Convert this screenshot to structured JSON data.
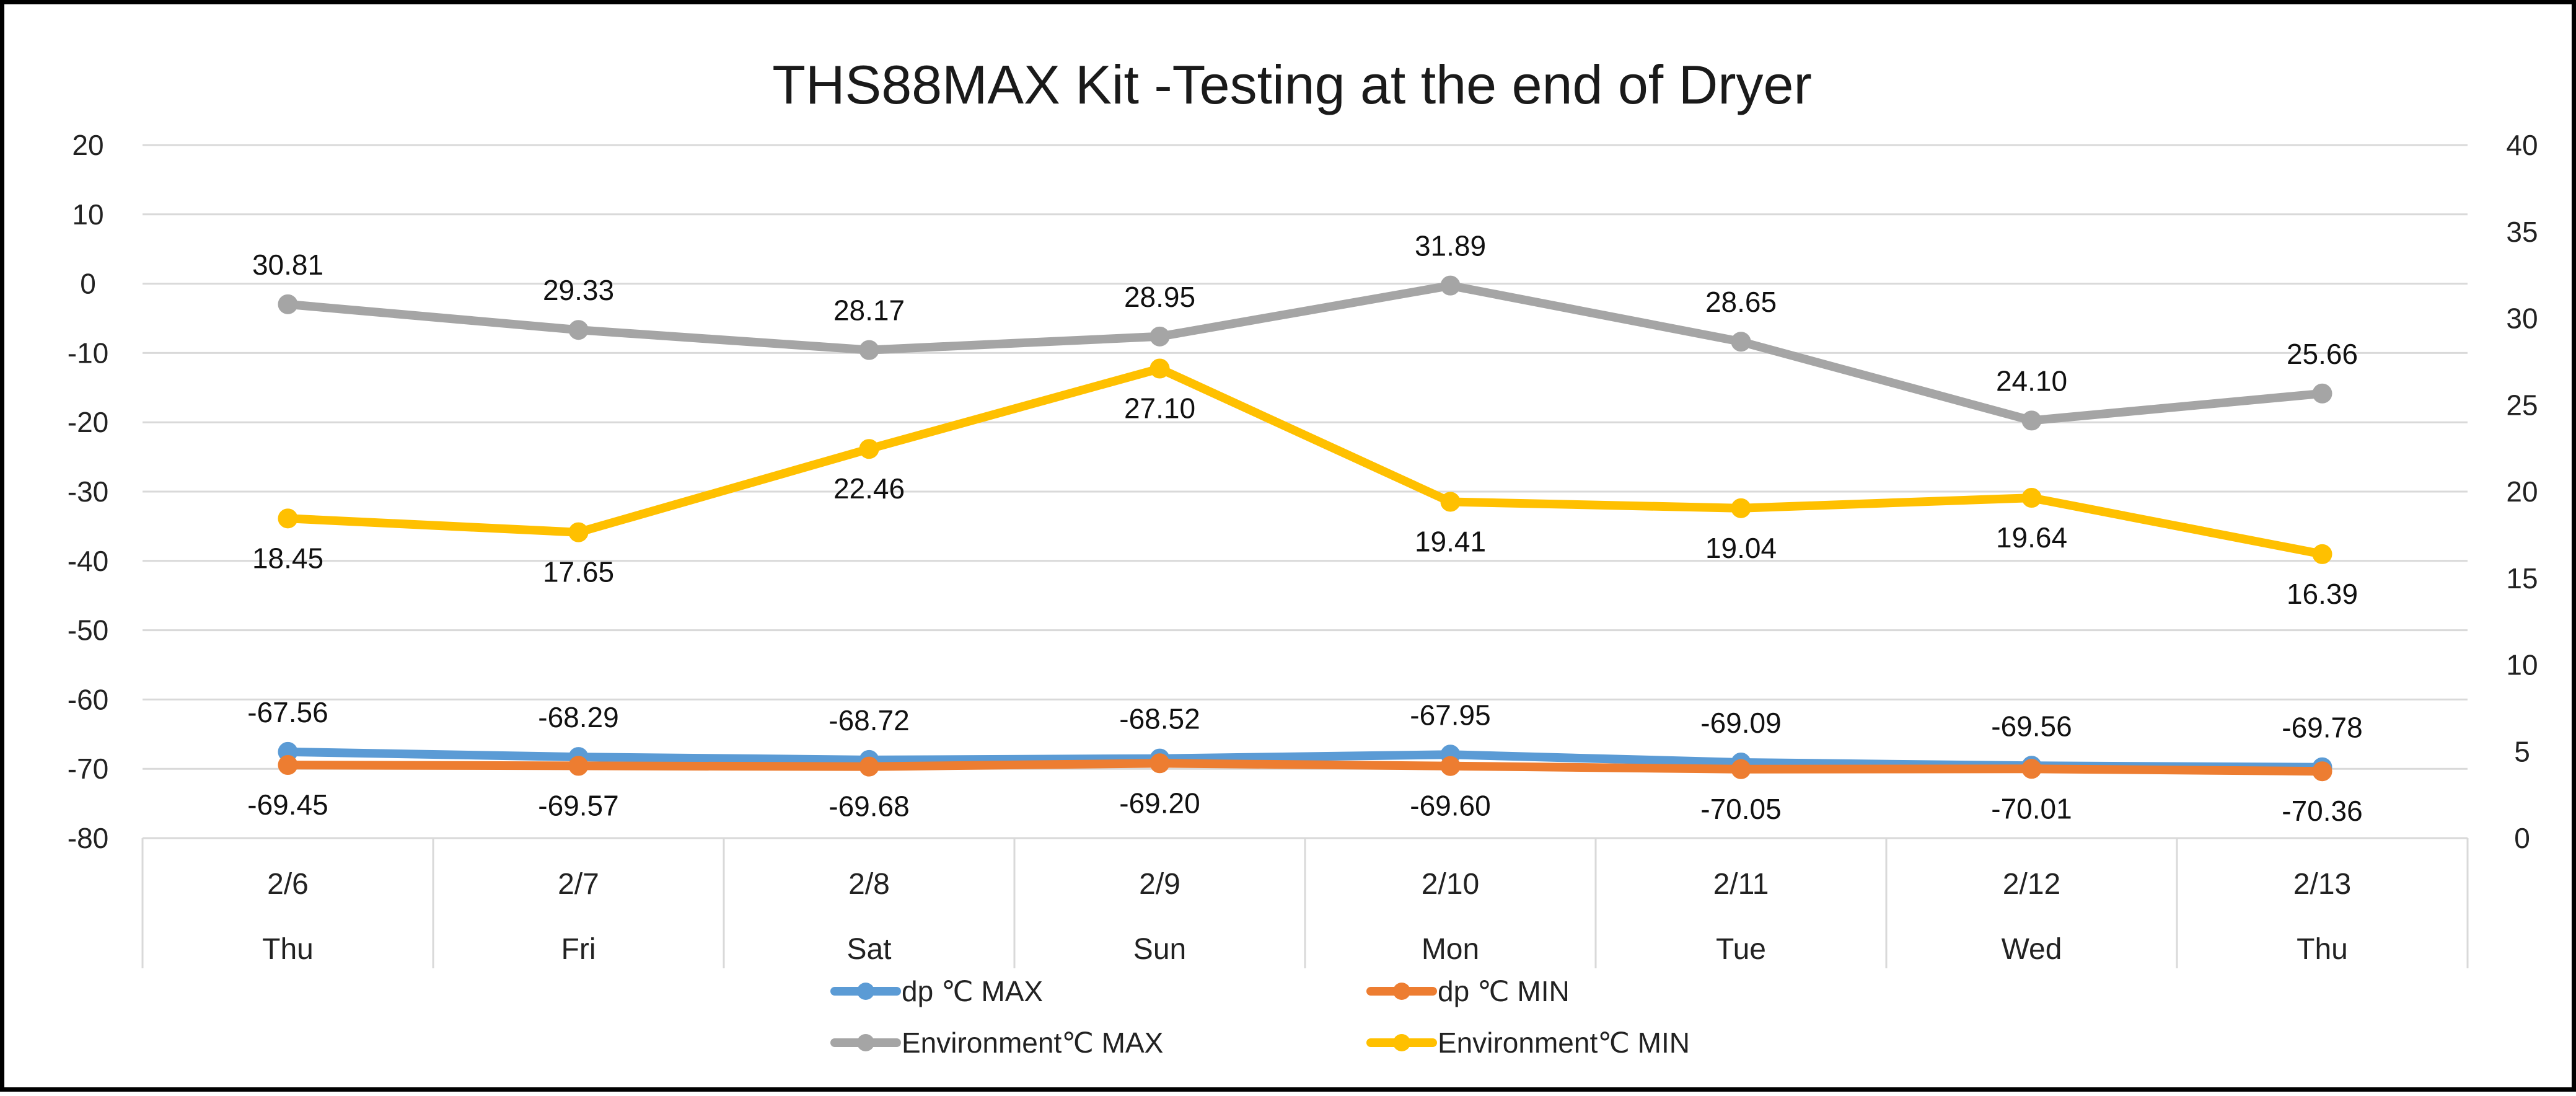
{
  "chart_data": {
    "type": "line",
    "title": "THS88MAX Kit -Testing at the end of Dryer",
    "categories": [
      {
        "date": "2/6",
        "day": "Thu"
      },
      {
        "date": "2/7",
        "day": "Fri"
      },
      {
        "date": "2/8",
        "day": "Sat"
      },
      {
        "date": "2/9",
        "day": "Sun"
      },
      {
        "date": "2/10",
        "day": "Mon"
      },
      {
        "date": "2/11",
        "day": "Tue"
      },
      {
        "date": "2/12",
        "day": "Wed"
      },
      {
        "date": "2/13",
        "day": "Thu"
      }
    ],
    "y_left": {
      "min": -80,
      "max": 20,
      "step": 10,
      "ticks": [
        "20",
        "10",
        "0",
        "-10",
        "-20",
        "-30",
        "-40",
        "-50",
        "-60",
        "-70",
        "-80"
      ]
    },
    "y_right": {
      "min": 0,
      "max": 40,
      "step": 5,
      "ticks": [
        "40",
        "35",
        "30",
        "25",
        "20",
        "15",
        "10",
        "5",
        "0"
      ]
    },
    "grid": true,
    "legend_position": "bottom",
    "series": [
      {
        "name": "dp ℃ MAX",
        "axis": "left",
        "color": "#5B9BD5",
        "values": [
          -67.56,
          -68.29,
          -68.72,
          -68.52,
          -67.95,
          -69.09,
          -69.56,
          -69.78
        ],
        "labels": [
          "-67.56",
          "-68.29",
          "-68.72",
          "-68.52",
          "-67.95",
          "-69.09",
          "-69.56",
          "-69.78"
        ],
        "label_position": "above"
      },
      {
        "name": "dp ℃ MIN",
        "axis": "left",
        "color": "#ED7D31",
        "values": [
          -69.45,
          -69.57,
          -69.68,
          -69.2,
          -69.6,
          -70.05,
          -70.01,
          -70.36
        ],
        "labels": [
          "-69.45",
          "-69.57",
          "-69.68",
          "-69.20",
          "-69.60",
          "-70.05",
          "-70.01",
          "-70.36"
        ],
        "label_position": "below"
      },
      {
        "name": "Environment℃ MAX",
        "axis": "right",
        "color": "#A5A5A5",
        "values": [
          30.81,
          29.33,
          28.17,
          28.95,
          31.89,
          28.65,
          24.1,
          25.66
        ],
        "labels": [
          "30.81",
          "29.33",
          "28.17",
          "28.95",
          "31.89",
          "28.65",
          "24.10",
          "25.66"
        ],
        "label_position": "above"
      },
      {
        "name": "Environment℃ MIN",
        "axis": "right",
        "color": "#FFC000",
        "values": [
          18.45,
          17.65,
          22.46,
          27.1,
          19.41,
          19.04,
          19.64,
          16.39
        ],
        "labels": [
          "18.45",
          "17.65",
          "22.46",
          "27.10",
          "19.41",
          "19.04",
          "19.64",
          "16.39"
        ],
        "label_position": "below"
      }
    ]
  }
}
